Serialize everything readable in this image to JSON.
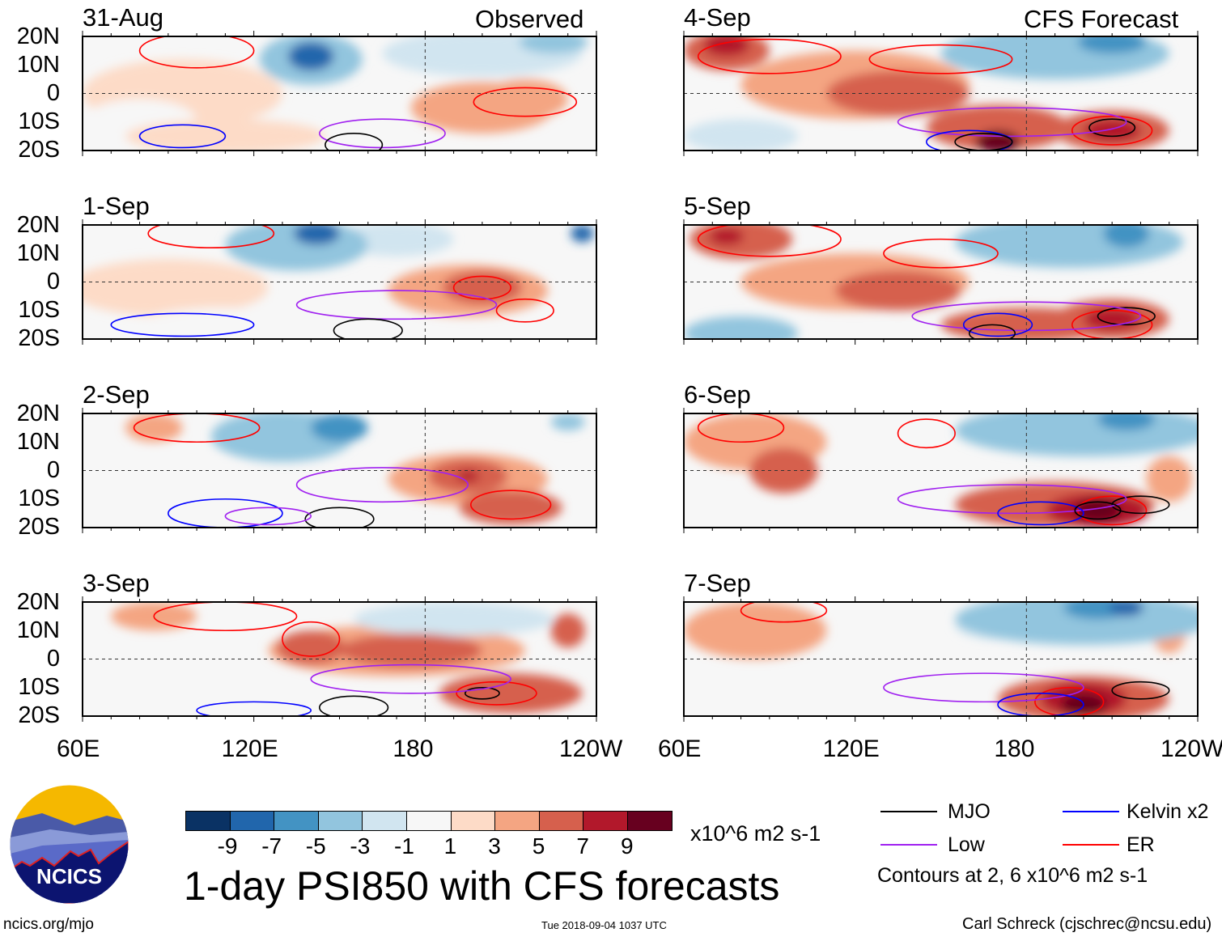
{
  "chart_data": {
    "type": "heatmap",
    "title": "1-day PSI850 with CFS forecasts",
    "units": "x10^6 m2 s-1",
    "timestamp": "Tue 2018-09-04 1037 UTC",
    "credit_left": "ncics.org/mjo",
    "credit_right": "Carl Schreck (cjschrec@ncsu.edu)",
    "logo_text": "NCICS",
    "column_titles": [
      "Observed",
      "CFS Forecast"
    ],
    "lat_ticks": [
      "20N",
      "10N",
      "0",
      "10S",
      "20S"
    ],
    "lon_ticks": [
      "60E",
      "120E",
      "180",
      "120W"
    ],
    "lon_range": [
      60,
      240
    ],
    "lat_range": [
      -20,
      20
    ],
    "colorbar": {
      "levels": [
        "-9",
        "-7",
        "-5",
        "-3",
        "-1",
        "1",
        "3",
        "5",
        "7",
        "9"
      ],
      "colors": [
        "#0a3264",
        "#2166ac",
        "#4393c3",
        "#92c5de",
        "#d1e5f0",
        "#f7f7f7",
        "#fddbc7",
        "#f4a582",
        "#d6604d",
        "#b2182b",
        "#67001f"
      ]
    },
    "legend": {
      "items": [
        {
          "label": "MJO",
          "color": "#000000"
        },
        {
          "label": "Kelvin x2",
          "color": "#0000ff"
        },
        {
          "label": "Low",
          "color": "#a020f0"
        },
        {
          "label": "ER",
          "color": "#ff0000"
        }
      ],
      "note": "Contours at 2, 6 x10^6 m2 s-1"
    },
    "panels": [
      {
        "date": "31-Aug",
        "blobs": [
          [
            95,
            0,
            35,
            12,
            1
          ],
          [
            140,
            12,
            18,
            9,
            -4
          ],
          [
            140,
            13,
            8,
            5,
            -8
          ],
          [
            200,
            14,
            35,
            8,
            -3
          ],
          [
            225,
            18,
            12,
            4,
            -5
          ],
          [
            110,
            -15,
            35,
            6,
            2
          ],
          [
            200,
            -5,
            25,
            9,
            3
          ],
          [
            215,
            -2,
            15,
            7,
            4
          ],
          [
            80,
            -10,
            20,
            8,
            -1
          ]
        ],
        "contours": [
          [
            100,
            15,
            20,
            6,
            "ER"
          ],
          [
            215,
            -3,
            18,
            5,
            "ER"
          ],
          [
            165,
            -14,
            22,
            5,
            "Low"
          ],
          [
            155,
            -18,
            10,
            4,
            "MJO"
          ],
          [
            95,
            -15,
            15,
            4,
            "Kelvin"
          ]
        ]
      },
      {
        "date": "1-Sep",
        "blobs": [
          [
            135,
            13,
            25,
            9,
            -4
          ],
          [
            142,
            17,
            8,
            4,
            -8
          ],
          [
            90,
            -2,
            35,
            10,
            1
          ],
          [
            195,
            -3,
            28,
            9,
            3
          ],
          [
            200,
            -2,
            14,
            6,
            5
          ],
          [
            110,
            -15,
            30,
            6,
            -1
          ],
          [
            235,
            17,
            4,
            3,
            -8
          ],
          [
            170,
            15,
            20,
            6,
            -3
          ]
        ],
        "contours": [
          [
            105,
            17,
            22,
            5,
            "ER"
          ],
          [
            200,
            -2,
            10,
            4,
            "ER"
          ],
          [
            215,
            -10,
            10,
            4,
            "ER"
          ],
          [
            170,
            -8,
            35,
            5,
            "Low"
          ],
          [
            160,
            -17,
            12,
            4,
            "MJO"
          ],
          [
            95,
            -15,
            25,
            4,
            "Kelvin"
          ]
        ]
      },
      {
        "date": "2-Sep",
        "blobs": [
          [
            130,
            12,
            25,
            9,
            -4
          ],
          [
            150,
            15,
            10,
            5,
            -6
          ],
          [
            90,
            -5,
            30,
            10,
            -1
          ],
          [
            195,
            -3,
            28,
            9,
            3
          ],
          [
            195,
            -2,
            14,
            6,
            5
          ],
          [
            195,
            -2,
            4,
            2,
            8
          ],
          [
            210,
            -13,
            18,
            6,
            5
          ],
          [
            85,
            15,
            10,
            5,
            3
          ],
          [
            230,
            17,
            6,
            3,
            -5
          ]
        ],
        "contours": [
          [
            100,
            15,
            22,
            5,
            "ER"
          ],
          [
            210,
            -12,
            14,
            5,
            "ER"
          ],
          [
            165,
            -5,
            30,
            6,
            "Low"
          ],
          [
            150,
            -17,
            12,
            4,
            "MJO"
          ],
          [
            110,
            -15,
            20,
            5,
            "Kelvin"
          ],
          [
            125,
            -16,
            15,
            3,
            "Low"
          ]
        ]
      },
      {
        "date": "3-Sep",
        "blobs": [
          [
            170,
            3,
            45,
            9,
            3
          ],
          [
            175,
            3,
            25,
            6,
            5
          ],
          [
            210,
            -12,
            25,
            7,
            5
          ],
          [
            140,
            4,
            12,
            6,
            5
          ],
          [
            85,
            15,
            15,
            5,
            3
          ],
          [
            190,
            14,
            35,
            6,
            -3
          ],
          [
            80,
            -12,
            20,
            8,
            -1
          ],
          [
            230,
            10,
            6,
            6,
            5
          ]
        ],
        "contours": [
          [
            110,
            15,
            25,
            5,
            "ER"
          ],
          [
            140,
            7,
            10,
            6,
            "ER"
          ],
          [
            205,
            -12,
            14,
            4,
            "ER"
          ],
          [
            200,
            -12,
            6,
            2,
            "MJO"
          ],
          [
            175,
            -7,
            35,
            5,
            "Low"
          ],
          [
            155,
            -17,
            12,
            4,
            "MJO"
          ],
          [
            120,
            -18,
            20,
            3,
            "Kelvin"
          ]
        ]
      },
      {
        "date": "4-Sep",
        "blobs": [
          [
            75,
            15,
            15,
            7,
            6
          ],
          [
            75,
            17,
            8,
            4,
            8
          ],
          [
            120,
            3,
            40,
            12,
            3
          ],
          [
            135,
            0,
            25,
            8,
            5
          ],
          [
            170,
            -12,
            25,
            8,
            5
          ],
          [
            170,
            -17,
            8,
            4,
            9
          ],
          [
            210,
            -13,
            20,
            7,
            5
          ],
          [
            210,
            -13,
            10,
            4,
            7
          ],
          [
            190,
            14,
            40,
            9,
            -4
          ],
          [
            210,
            18,
            12,
            4,
            -6
          ],
          [
            80,
            -15,
            20,
            6,
            -3
          ]
        ],
        "contours": [
          [
            90,
            13,
            25,
            6,
            "ER"
          ],
          [
            150,
            12,
            25,
            5,
            "ER"
          ],
          [
            210,
            -13,
            14,
            5,
            "ER"
          ],
          [
            210,
            -12,
            8,
            3,
            "MJO"
          ],
          [
            175,
            -10,
            40,
            5,
            "Low"
          ],
          [
            160,
            -17,
            15,
            4,
            "Kelvin"
          ],
          [
            165,
            -17,
            10,
            3,
            "MJO"
          ]
        ]
      },
      {
        "date": "5-Sep",
        "blobs": [
          [
            80,
            15,
            18,
            7,
            5
          ],
          [
            75,
            16,
            6,
            3,
            8
          ],
          [
            120,
            0,
            40,
            10,
            3
          ],
          [
            135,
            -3,
            22,
            7,
            5
          ],
          [
            180,
            -15,
            30,
            6,
            5
          ],
          [
            210,
            -13,
            20,
            7,
            6
          ],
          [
            210,
            -13,
            10,
            4,
            8
          ],
          [
            195,
            14,
            40,
            9,
            -4
          ],
          [
            215,
            17,
            8,
            5,
            -7
          ],
          [
            80,
            -18,
            20,
            6,
            -5
          ]
        ],
        "contours": [
          [
            90,
            15,
            25,
            6,
            "ER"
          ],
          [
            150,
            10,
            20,
            5,
            "ER"
          ],
          [
            210,
            -15,
            14,
            5,
            "ER"
          ],
          [
            215,
            -12,
            10,
            3,
            "MJO"
          ],
          [
            180,
            -12,
            40,
            5,
            "Low"
          ],
          [
            170,
            -15,
            12,
            4,
            "Kelvin"
          ],
          [
            168,
            -18,
            8,
            3,
            "MJO"
          ]
        ]
      },
      {
        "date": "6-Sep",
        "blobs": [
          [
            85,
            10,
            25,
            10,
            4
          ],
          [
            95,
            0,
            12,
            8,
            5
          ],
          [
            190,
            -12,
            35,
            8,
            5
          ],
          [
            205,
            -14,
            18,
            6,
            7
          ],
          [
            205,
            -14,
            8,
            4,
            9
          ],
          [
            200,
            14,
            45,
            9,
            -4
          ],
          [
            215,
            18,
            10,
            4,
            -6
          ],
          [
            230,
            -3,
            8,
            8,
            3
          ]
        ],
        "contours": [
          [
            80,
            15,
            15,
            5,
            "ER"
          ],
          [
            145,
            13,
            10,
            5,
            "ER"
          ],
          [
            210,
            -14,
            12,
            5,
            "ER"
          ],
          [
            220,
            -12,
            10,
            3,
            "MJO"
          ],
          [
            175,
            -10,
            40,
            5,
            "Low"
          ],
          [
            185,
            -15,
            15,
            4,
            "Kelvin"
          ],
          [
            205,
            -14,
            8,
            3,
            "MJO"
          ]
        ]
      },
      {
        "date": "7-Sep",
        "blobs": [
          [
            85,
            10,
            25,
            10,
            4
          ],
          [
            200,
            -14,
            30,
            8,
            5
          ],
          [
            200,
            -14,
            15,
            6,
            7
          ],
          [
            200,
            -16,
            8,
            4,
            9
          ],
          [
            200,
            14,
            45,
            9,
            -4
          ],
          [
            205,
            18,
            12,
            4,
            -7
          ],
          [
            215,
            18,
            6,
            3,
            -9
          ],
          [
            230,
            10,
            6,
            8,
            3
          ],
          [
            170,
            12,
            15,
            5,
            -3
          ]
        ],
        "contours": [
          [
            95,
            17,
            15,
            4,
            "ER"
          ],
          [
            195,
            -15,
            12,
            5,
            "ER"
          ],
          [
            220,
            -11,
            10,
            3,
            "MJO"
          ],
          [
            165,
            -10,
            35,
            5,
            "Low"
          ],
          [
            185,
            -16,
            15,
            4,
            "Kelvin"
          ]
        ]
      }
    ]
  }
}
